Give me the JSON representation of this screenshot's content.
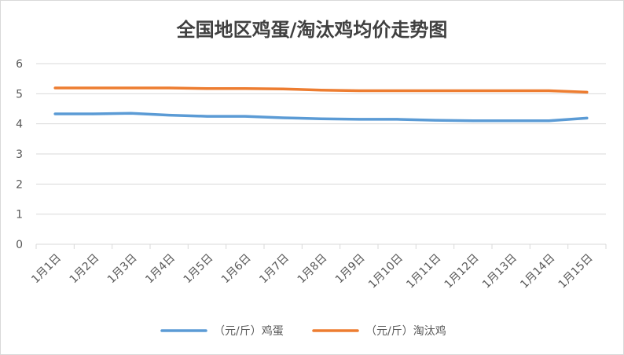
{
  "chart_data": {
    "type": "line",
    "title": "全国地区鸡蛋/淘汰鸡均价走势图",
    "xlabel": "",
    "ylabel": "",
    "categories": [
      "1月1日",
      "1月2日",
      "1月3日",
      "1月4日",
      "1月5日",
      "1月6日",
      "1月7日",
      "1月8日",
      "1月9日",
      "1月10日",
      "1月11日",
      "1月12日",
      "1月13日",
      "1月14日",
      "1月15日"
    ],
    "ylim": [
      0,
      6
    ],
    "yticks": [
      "0",
      "1",
      "2",
      "3",
      "4",
      "5",
      "6"
    ],
    "grid": true,
    "legend_position": "bottom",
    "series": [
      {
        "name": "（元/斤）鸡蛋",
        "color": "#5b9bd5",
        "values": [
          4.33,
          4.33,
          4.35,
          4.29,
          4.25,
          4.25,
          4.2,
          4.17,
          4.15,
          4.15,
          4.12,
          4.1,
          4.1,
          4.1,
          4.19
        ]
      },
      {
        "name": "（元/斤）淘汰鸡",
        "color": "#ed7d31",
        "values": [
          5.19,
          5.19,
          5.19,
          5.19,
          5.17,
          5.17,
          5.16,
          5.12,
          5.1,
          5.1,
          5.1,
          5.1,
          5.1,
          5.1,
          5.05
        ]
      }
    ]
  }
}
